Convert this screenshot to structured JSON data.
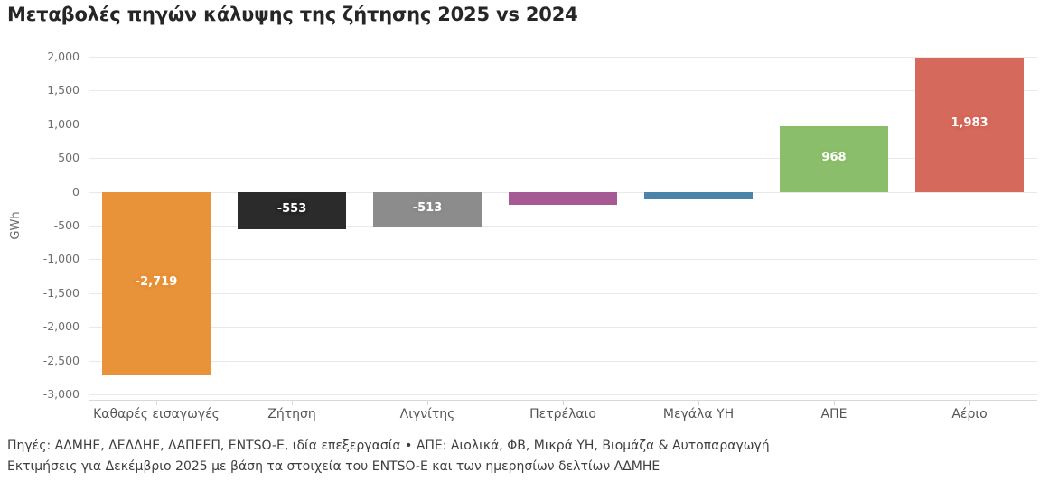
{
  "chart_data": {
    "type": "bar",
    "title": "Μεταβολές πηγών κάλυψης της ζήτησης 2025 vs 2024",
    "xlabel": "",
    "ylabel": "GWh",
    "categories": [
      "Καθαρές εισαγωγές",
      "Ζήτηση",
      "Λιγνίτης",
      "Πετρέλαιο",
      "Μεγάλα ΥΗ",
      "ΑΠΕ",
      "Αέριο"
    ],
    "values": [
      -2719,
      -553,
      -513,
      -190,
      -110,
      968,
      1983
    ],
    "value_labels": [
      "-2,719",
      "-553",
      "-513",
      "",
      "",
      "968",
      "1,983"
    ],
    "bar_colors": [
      "#E8923A",
      "#2B2B2B",
      "#8C8C8C",
      "#A65A93",
      "#4A84A8",
      "#8BBE6A",
      "#D5695B"
    ],
    "yticks": [
      2000,
      1500,
      1000,
      500,
      0,
      -500,
      -1000,
      -1500,
      -2000,
      -2500,
      -3000
    ],
    "ytick_labels": [
      "2,000",
      "1,500",
      "1,000",
      "500",
      "0",
      "-500",
      "-1,000",
      "-1,500",
      "-2,000",
      "-2,500",
      "-3,000"
    ],
    "ylim": [
      -3100,
      2050
    ],
    "grid": true,
    "legend": "none",
    "label_text_color": "#ffffff"
  },
  "footer": {
    "line1": "Πηγές: ΑΔΜΗΕ, ΔΕΔΔΗΕ, ΔΑΠΕΕΠ, ENTSO-E, ιδία επεξεργασία • ΑΠΕ: Αιολικά, ΦΒ, Μικρά ΥΗ, Βιομάζα & Αυτοπαραγωγή",
    "line2": "Εκτιμήσεις για Δεκέμβριο 2025 με βάση τα στοιχεία του ENTSO-E και των ημερησίων δελτίων ΑΔΜΗΕ"
  }
}
